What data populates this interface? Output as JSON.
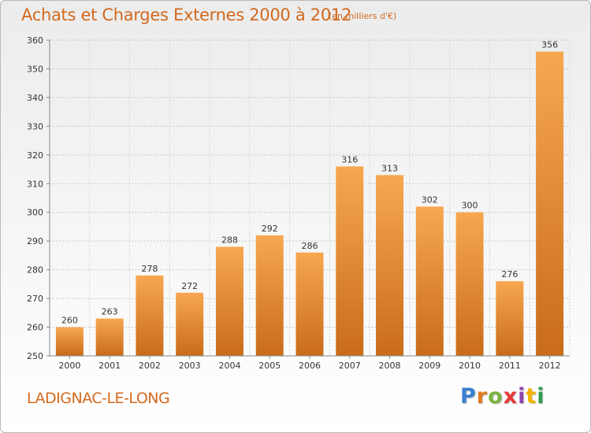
{
  "header": {
    "title": "Achats et Charges Externes 2000 à 2012",
    "unit": "(en milliers d'€)"
  },
  "footer": {
    "commune": "LADIGNAC-LE-LONG",
    "logo": "Proxiti"
  },
  "colors": {
    "text_accent": "#d2691e",
    "bar_light": "#f7a14c",
    "bar_dark": "#c86a18",
    "grid": "#c8c8c8"
  },
  "chart_data": {
    "type": "bar",
    "title": "Achats et Charges Externes 2000 à 2012",
    "subtitle": "(en milliers d'€)",
    "categories": [
      "2000",
      "2001",
      "2002",
      "2003",
      "2004",
      "2005",
      "2006",
      "2007",
      "2008",
      "2009",
      "2010",
      "2011",
      "2012"
    ],
    "values": [
      260,
      263,
      278,
      272,
      288,
      292,
      286,
      316,
      313,
      302,
      300,
      276,
      356
    ],
    "ylim": [
      250,
      360
    ],
    "yticks": [
      250,
      260,
      270,
      280,
      290,
      300,
      310,
      320,
      330,
      340,
      350,
      360
    ],
    "grid": true,
    "data_labels": true
  }
}
